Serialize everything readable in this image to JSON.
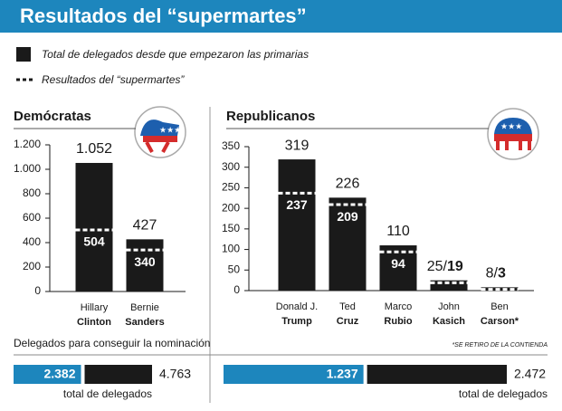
{
  "header": {
    "title": "Resultados del “supermartes”"
  },
  "chart_data": [
    {
      "type": "bar",
      "title": "Demócratas",
      "category_first_lines": [
        "Hillary",
        "Bernie"
      ],
      "categories": [
        "Clinton",
        "Sanders"
      ],
      "series": [
        {
          "name": "Total de delegados desde que empezaron las primarias",
          "color": "#1a1a1a",
          "values": [
            1052,
            427
          ],
          "value_labels": [
            "1.052",
            "427"
          ]
        },
        {
          "name": "Resultados del “supermartes”",
          "color": "#ffffff",
          "values": [
            504,
            340
          ]
        }
      ],
      "ylim": [
        0,
        1200
      ],
      "yticks": [
        0,
        200,
        400,
        600,
        800,
        {
          "value": 1000,
          "label": "1.000"
        },
        {
          "value": 1200,
          "label": "1.200"
        }
      ]
    },
    {
      "type": "bar",
      "title": "Republicanos",
      "category_first_lines": [
        "Donald J.",
        "Ted",
        "Marco",
        "John",
        "Ben"
      ],
      "categories": [
        "Trump",
        "Cruz",
        "Rubio",
        "Kasich",
        "Carson*"
      ],
      "series": [
        {
          "color": "#1a1a1a",
          "values": [
            319,
            226,
            110,
            25,
            8
          ],
          "value_labels": [
            "319",
            "226",
            "110",
            "25/",
            "8/"
          ]
        },
        {
          "color": "#ffffff",
          "values": [
            237,
            209,
            94,
            19,
            3
          ]
        }
      ],
      "ylim": [
        0,
        350
      ],
      "yticks": [
        0,
        50,
        100,
        150,
        200,
        250,
        300,
        350
      ],
      "footnote": "*SE RETIRO DE LA CONTIENDA"
    }
  ],
  "nomination": {
    "label": "Delegados para conseguir la nominación",
    "parties": [
      {
        "needed": 2382,
        "needed_label": "2.382",
        "total": 4763,
        "total_label": "4.763",
        "caption": "total de delegados"
      },
      {
        "needed": 1237,
        "needed_label": "1.237",
        "total": 2472,
        "total_label": "2.472",
        "caption": "total de delegados"
      }
    ]
  }
}
